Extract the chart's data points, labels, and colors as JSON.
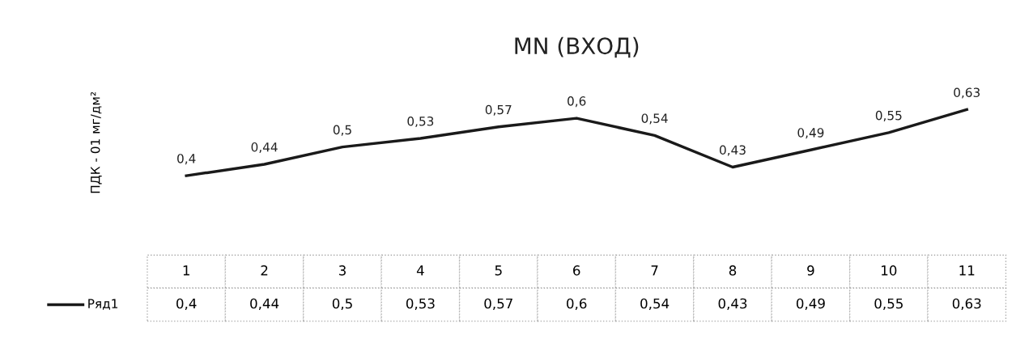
{
  "chart_data": {
    "type": "line",
    "title": "MN (ВХОД)",
    "ylabel": "ПДК - 01 мг/дм²",
    "categories": [
      "1",
      "2",
      "3",
      "4",
      "5",
      "6",
      "7",
      "8",
      "9",
      "10",
      "11"
    ],
    "series": [
      {
        "name": "Ряд1",
        "color": "#1a1a1a",
        "values": [
          0.4,
          0.44,
          0.5,
          0.53,
          0.57,
          0.6,
          0.54,
          0.43,
          0.49,
          0.55,
          0.63
        ],
        "value_labels": [
          "0,4",
          "0,44",
          "0,5",
          "0,53",
          "0,57",
          "0,6",
          "0,54",
          "0,43",
          "0,49",
          "0,55",
          "0,63"
        ]
      }
    ],
    "grid": false,
    "legend": "bottom left",
    "line_style": "solid",
    "tick_labels": false
  }
}
